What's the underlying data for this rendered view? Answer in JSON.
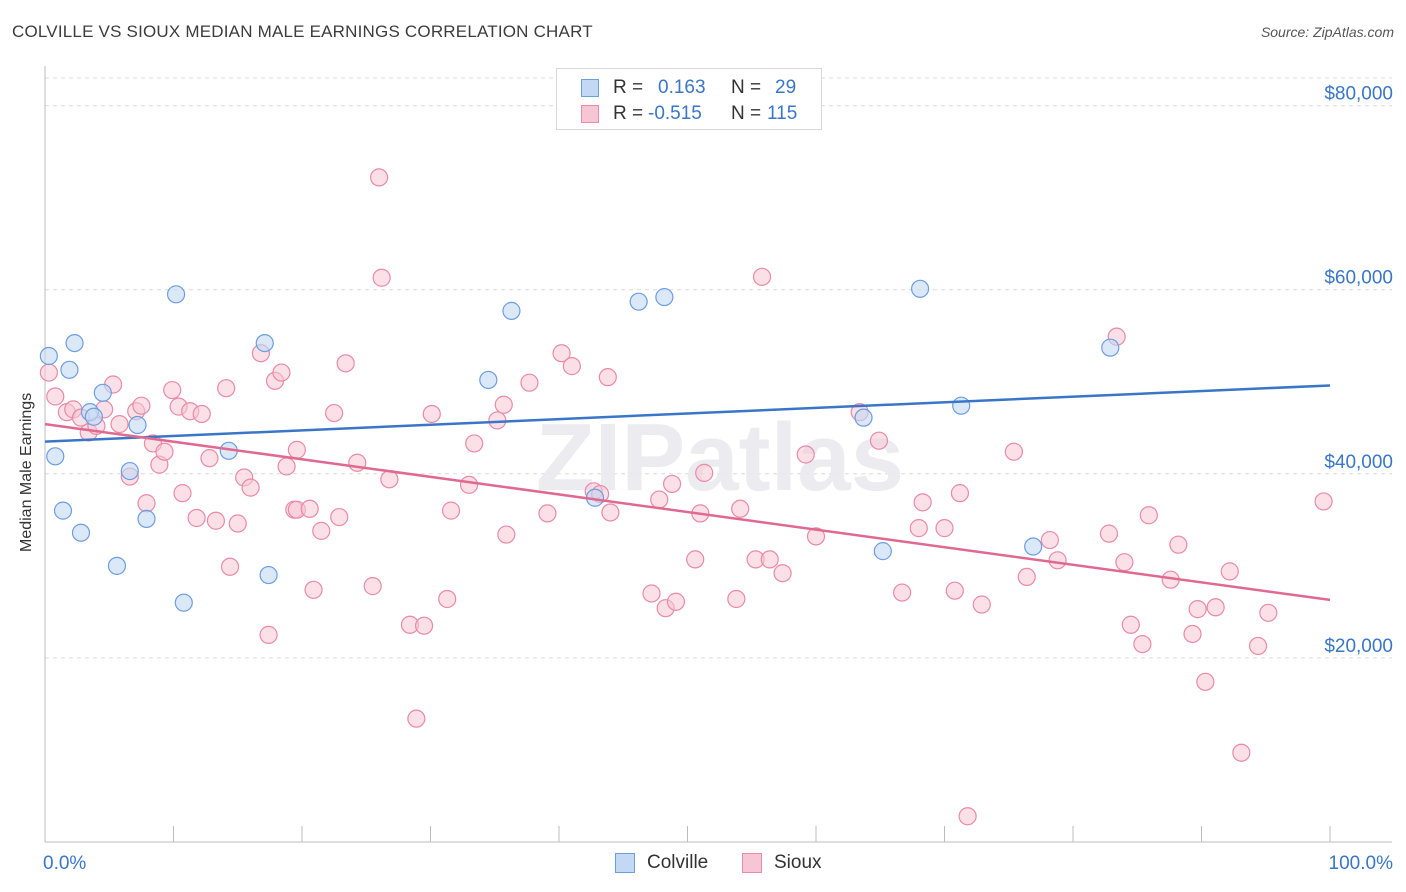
{
  "title": "COLVILLE VS SIOUX MEDIAN MALE EARNINGS CORRELATION CHART",
  "source": "Source: ZipAtlas.com",
  "watermark": "ZIPatlas",
  "legend": {
    "rows": [
      {
        "r_label": "R =",
        "r_value": "0.163",
        "n_label": "N =",
        "n_value": "29"
      },
      {
        "r_label": "R =",
        "r_value": "-0.515",
        "n_label": "N =",
        "n_value": "115"
      }
    ]
  },
  "bottom_legend": [
    {
      "label": "Colville"
    },
    {
      "label": "Sioux"
    }
  ],
  "colors": {
    "colville_fill": "#c3d8f3",
    "colville_stroke": "#6c9ee0",
    "colville_line": "#3a76c8",
    "sioux_fill": "#f7c6d5",
    "sioux_stroke": "#e98aa8",
    "sioux_line": "#e06990",
    "axis_label": "#3a76c8",
    "grid": "#dcdcdc"
  },
  "chart_data": {
    "type": "scatter",
    "title": "COLVILLE VS SIOUX MEDIAN MALE EARNINGS CORRELATION CHART",
    "xlabel": "",
    "ylabel": "Median Male Earnings",
    "xlim": [
      0,
      100
    ],
    "ylim": [
      0,
      83000
    ],
    "x_tick_labels": [
      "0.0%",
      "100.0%"
    ],
    "y_ticks": [
      20000,
      40000,
      60000,
      80000
    ],
    "y_tick_labels": [
      "$20,000",
      "$40,000",
      "$60,000",
      "$80,000"
    ],
    "series": [
      {
        "name": "Colville",
        "r": 0.163,
        "n": 29,
        "trend": {
          "x": [
            0,
            100
          ],
          "y": [
            43500,
            49600
          ]
        },
        "points": [
          [
            0.3,
            52800
          ],
          [
            0.8,
            41900
          ],
          [
            1.4,
            36000
          ],
          [
            1.9,
            51300
          ],
          [
            2.3,
            54200
          ],
          [
            2.8,
            33600
          ],
          [
            3.5,
            46700
          ],
          [
            3.8,
            46200
          ],
          [
            4.5,
            48800
          ],
          [
            5.6,
            30000
          ],
          [
            6.6,
            40300
          ],
          [
            7.2,
            45300
          ],
          [
            7.9,
            35100
          ],
          [
            10.2,
            59500
          ],
          [
            10.8,
            26000
          ],
          [
            14.3,
            42500
          ],
          [
            17.1,
            54200
          ],
          [
            17.4,
            29000
          ],
          [
            34.5,
            50200
          ],
          [
            36.3,
            57700
          ],
          [
            42.8,
            37400
          ],
          [
            46.2,
            58700
          ],
          [
            48.2,
            59200
          ],
          [
            63.7,
            46100
          ],
          [
            65.2,
            31600
          ],
          [
            68.1,
            60100
          ],
          [
            71.3,
            47400
          ],
          [
            76.9,
            32100
          ],
          [
            82.9,
            53700
          ]
        ]
      },
      {
        "name": "Sioux",
        "r": -0.515,
        "n": 115,
        "trend": {
          "x": [
            0,
            100
          ],
          "y": [
            45400,
            26300
          ]
        },
        "points": [
          [
            0.3,
            51000
          ],
          [
            0.8,
            48400
          ],
          [
            1.7,
            46700
          ],
          [
            2.2,
            47000
          ],
          [
            2.8,
            46100
          ],
          [
            3.4,
            44500
          ],
          [
            4.0,
            45200
          ],
          [
            4.6,
            47000
          ],
          [
            5.3,
            49700
          ],
          [
            5.8,
            45400
          ],
          [
            6.6,
            39700
          ],
          [
            7.1,
            46800
          ],
          [
            7.5,
            47400
          ],
          [
            7.9,
            36800
          ],
          [
            8.4,
            43300
          ],
          [
            8.9,
            41000
          ],
          [
            9.3,
            42400
          ],
          [
            9.9,
            49100
          ],
          [
            10.4,
            47300
          ],
          [
            10.7,
            37900
          ],
          [
            11.3,
            46800
          ],
          [
            11.8,
            35200
          ],
          [
            12.2,
            46500
          ],
          [
            12.8,
            41700
          ],
          [
            13.3,
            34900
          ],
          [
            14.1,
            49300
          ],
          [
            14.4,
            29900
          ],
          [
            15.0,
            34600
          ],
          [
            15.5,
            39600
          ],
          [
            16.0,
            38500
          ],
          [
            16.8,
            53100
          ],
          [
            17.4,
            22500
          ],
          [
            17.9,
            50100
          ],
          [
            18.4,
            51000
          ],
          [
            18.8,
            40800
          ],
          [
            19.4,
            36100
          ],
          [
            19.6,
            36100
          ],
          [
            19.6,
            42600
          ],
          [
            20.6,
            36200
          ],
          [
            20.9,
            27400
          ],
          [
            21.5,
            33800
          ],
          [
            22.5,
            46600
          ],
          [
            22.9,
            35300
          ],
          [
            23.4,
            52000
          ],
          [
            24.3,
            41200
          ],
          [
            25.5,
            27800
          ],
          [
            26.0,
            72200
          ],
          [
            26.2,
            61300
          ],
          [
            26.8,
            39400
          ],
          [
            28.4,
            23600
          ],
          [
            28.9,
            13400
          ],
          [
            29.5,
            23500
          ],
          [
            30.1,
            46500
          ],
          [
            31.3,
            26400
          ],
          [
            31.6,
            36000
          ],
          [
            33.0,
            38800
          ],
          [
            33.4,
            43300
          ],
          [
            35.2,
            45800
          ],
          [
            35.7,
            47500
          ],
          [
            35.9,
            33400
          ],
          [
            37.7,
            49900
          ],
          [
            39.1,
            35700
          ],
          [
            40.2,
            53100
          ],
          [
            41.0,
            51700
          ],
          [
            42.7,
            38100
          ],
          [
            43.2,
            37800
          ],
          [
            43.8,
            50500
          ],
          [
            44.0,
            35800
          ],
          [
            47.2,
            27000
          ],
          [
            47.8,
            37200
          ],
          [
            48.3,
            25400
          ],
          [
            48.8,
            38900
          ],
          [
            49.1,
            26100
          ],
          [
            50.6,
            30700
          ],
          [
            51.0,
            35700
          ],
          [
            51.3,
            40100
          ],
          [
            53.8,
            26400
          ],
          [
            54.1,
            36200
          ],
          [
            55.3,
            30700
          ],
          [
            55.8,
            61400
          ],
          [
            56.4,
            30700
          ],
          [
            57.4,
            29200
          ],
          [
            59.2,
            42100
          ],
          [
            60.0,
            33200
          ],
          [
            63.4,
            46700
          ],
          [
            64.9,
            43600
          ],
          [
            66.7,
            27100
          ],
          [
            68.0,
            34100
          ],
          [
            68.3,
            36900
          ],
          [
            70.0,
            34100
          ],
          [
            70.8,
            27300
          ],
          [
            71.2,
            37900
          ],
          [
            72.9,
            25800
          ],
          [
            75.4,
            42400
          ],
          [
            76.4,
            28800
          ],
          [
            78.2,
            32800
          ],
          [
            78.8,
            30600
          ],
          [
            82.8,
            33500
          ],
          [
            83.4,
            54900
          ],
          [
            84.0,
            30400
          ],
          [
            84.5,
            23600
          ],
          [
            85.4,
            21500
          ],
          [
            85.9,
            35500
          ],
          [
            87.6,
            28500
          ],
          [
            88.2,
            32300
          ],
          [
            89.3,
            22600
          ],
          [
            89.7,
            25300
          ],
          [
            90.3,
            17400
          ],
          [
            91.1,
            25500
          ],
          [
            92.2,
            29400
          ],
          [
            93.1,
            9700
          ],
          [
            94.4,
            21300
          ],
          [
            95.2,
            24900
          ],
          [
            99.5,
            37000
          ],
          [
            71.8,
            2800
          ]
        ]
      }
    ]
  }
}
